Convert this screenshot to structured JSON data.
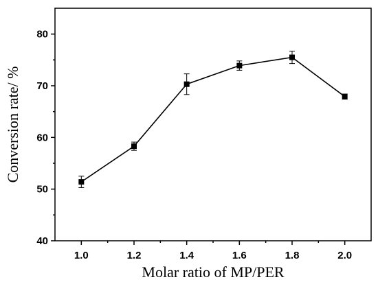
{
  "chart_data": {
    "type": "line",
    "title": "",
    "xlabel": "Molar ratio of MP/PER",
    "ylabel": "Conversion rate/ %",
    "xlim": [
      0.9,
      2.1
    ],
    "ylim": [
      40,
      85
    ],
    "x_ticks": [
      1.0,
      1.2,
      1.4,
      1.6,
      1.8,
      2.0
    ],
    "x_tick_labels": [
      "1.0",
      "1.2",
      "1.4",
      "1.6",
      "1.8",
      "2.0"
    ],
    "y_ticks": [
      40,
      50,
      60,
      70,
      80
    ],
    "y_tick_labels": [
      "40",
      "50",
      "60",
      "70",
      "80"
    ],
    "grid": false,
    "legend": "none",
    "marker": "square",
    "color": "#000000",
    "series": [
      {
        "x": [
          1.0,
          1.2,
          1.4,
          1.6,
          1.8,
          2.0
        ],
        "y": [
          51.4,
          58.3,
          70.3,
          73.9,
          75.5,
          67.9
        ],
        "error": [
          1.1,
          0.8,
          2.0,
          0.9,
          1.2,
          0.5
        ]
      }
    ]
  }
}
